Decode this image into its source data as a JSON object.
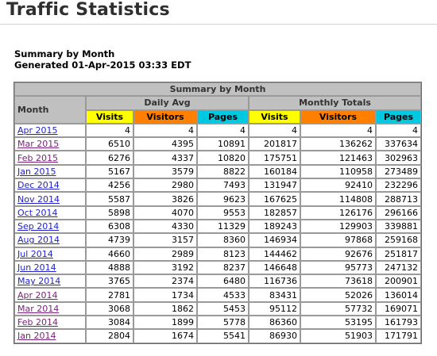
{
  "page": {
    "title": "Traffic Statistics",
    "summary_heading": "Summary by Month",
    "generated": "Generated 01-Apr-2015 03:33 EDT"
  },
  "table": {
    "caption": "Summary by Month",
    "month_header": "Month",
    "daily_avg_header": "Daily Avg",
    "monthly_totals_header": "Monthly Totals",
    "col_visits": "Visits",
    "col_visitors": "Visitors",
    "col_pages": "Pages",
    "colors": {
      "visits": "#ffff00",
      "visitors": "#ff8000",
      "pages": "#00c8e0",
      "header_gray": "#c0c0c0",
      "link": "#2222cc",
      "visited_link": "#7a1f7a"
    },
    "rows": [
      {
        "month": "Apr 2015",
        "visited": false,
        "d_visits": "4",
        "d_visitors": "4",
        "d_pages": "4",
        "m_visits": "4",
        "m_visitors": "4",
        "m_pages": "4"
      },
      {
        "month": "Mar 2015",
        "visited": true,
        "d_visits": "6510",
        "d_visitors": "4395",
        "d_pages": "10891",
        "m_visits": "201817",
        "m_visitors": "136262",
        "m_pages": "337634"
      },
      {
        "month": "Feb 2015",
        "visited": true,
        "d_visits": "6276",
        "d_visitors": "4337",
        "d_pages": "10820",
        "m_visits": "175751",
        "m_visitors": "121463",
        "m_pages": "302963"
      },
      {
        "month": "Jan 2015",
        "visited": false,
        "d_visits": "5167",
        "d_visitors": "3579",
        "d_pages": "8822",
        "m_visits": "160184",
        "m_visitors": "110958",
        "m_pages": "273489"
      },
      {
        "month": "Dec 2014",
        "visited": false,
        "d_visits": "4256",
        "d_visitors": "2980",
        "d_pages": "7493",
        "m_visits": "131947",
        "m_visitors": "92410",
        "m_pages": "232296"
      },
      {
        "month": "Nov 2014",
        "visited": false,
        "d_visits": "5587",
        "d_visitors": "3826",
        "d_pages": "9623",
        "m_visits": "167625",
        "m_visitors": "114808",
        "m_pages": "288713"
      },
      {
        "month": "Oct 2014",
        "visited": false,
        "d_visits": "5898",
        "d_visitors": "4070",
        "d_pages": "9553",
        "m_visits": "182857",
        "m_visitors": "126176",
        "m_pages": "296166"
      },
      {
        "month": "Sep 2014",
        "visited": false,
        "d_visits": "6308",
        "d_visitors": "4330",
        "d_pages": "11329",
        "m_visits": "189243",
        "m_visitors": "129903",
        "m_pages": "339881"
      },
      {
        "month": "Aug 2014",
        "visited": false,
        "d_visits": "4739",
        "d_visitors": "3157",
        "d_pages": "8360",
        "m_visits": "146934",
        "m_visitors": "97868",
        "m_pages": "259168"
      },
      {
        "month": "Jul 2014",
        "visited": false,
        "d_visits": "4660",
        "d_visitors": "2989",
        "d_pages": "8123",
        "m_visits": "144462",
        "m_visitors": "92676",
        "m_pages": "251817"
      },
      {
        "month": "Jun 2014",
        "visited": false,
        "d_visits": "4888",
        "d_visitors": "3192",
        "d_pages": "8237",
        "m_visits": "146648",
        "m_visitors": "95773",
        "m_pages": "247132"
      },
      {
        "month": "May 2014",
        "visited": false,
        "d_visits": "3765",
        "d_visitors": "2374",
        "d_pages": "6480",
        "m_visits": "116736",
        "m_visitors": "73618",
        "m_pages": "200901"
      },
      {
        "month": "Apr 2014",
        "visited": true,
        "d_visits": "2781",
        "d_visitors": "1734",
        "d_pages": "4533",
        "m_visits": "83431",
        "m_visitors": "52026",
        "m_pages": "136014"
      },
      {
        "month": "Mar 2014",
        "visited": true,
        "d_visits": "3068",
        "d_visitors": "1862",
        "d_pages": "5453",
        "m_visits": "95112",
        "m_visitors": "57732",
        "m_pages": "169071"
      },
      {
        "month": "Feb 2014",
        "visited": true,
        "d_visits": "3084",
        "d_visitors": "1899",
        "d_pages": "5778",
        "m_visits": "86360",
        "m_visitors": "53195",
        "m_pages": "161793"
      },
      {
        "month": "Jan 2014",
        "visited": true,
        "d_visits": "2804",
        "d_visitors": "1674",
        "d_pages": "5541",
        "m_visits": "86930",
        "m_visitors": "51903",
        "m_pages": "171791"
      }
    ]
  }
}
